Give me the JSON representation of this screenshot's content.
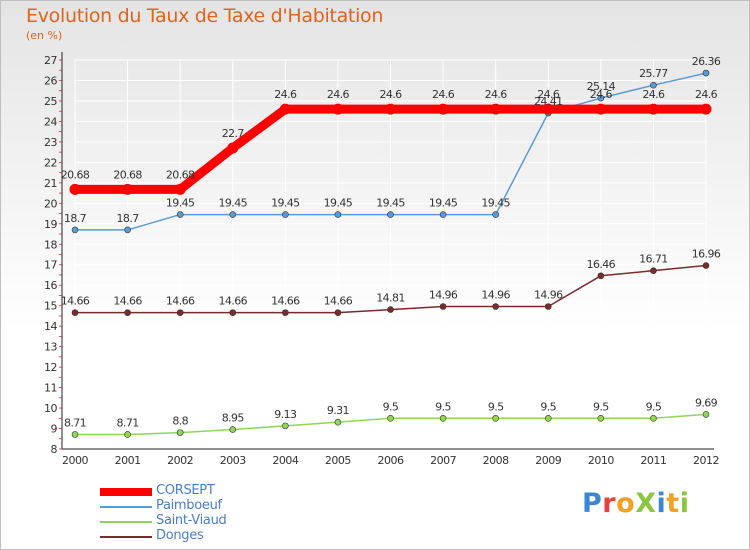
{
  "title": "Evolution du Taux de Taxe d'Habitation",
  "subtitle": "(en %)",
  "logo": {
    "text": "ProXiti",
    "colors": [
      "#3a87d6",
      "#e8413c",
      "#f2a21f",
      "#8cc63f",
      "#3a87d6",
      "#f2a21f",
      "#8cc63f"
    ]
  },
  "chart_data": {
    "type": "line",
    "x": [
      "2000",
      "2001",
      "2002",
      "2003",
      "2004",
      "2005",
      "2006",
      "2007",
      "2008",
      "2009",
      "2010",
      "2011",
      "2012"
    ],
    "ylim": [
      8,
      27
    ],
    "yticks": [
      8,
      9,
      10,
      11,
      12,
      13,
      14,
      15,
      16,
      17,
      18,
      19,
      20,
      21,
      22,
      23,
      24,
      25,
      26,
      27
    ],
    "grid": true,
    "legend_position": "bottom-left",
    "series": [
      {
        "name": "CORSEPT",
        "color": "#ff0000",
        "values": [
          20.68,
          20.68,
          20.68,
          22.7,
          24.6,
          24.6,
          24.6,
          24.6,
          24.6,
          24.6,
          24.6,
          24.6,
          24.6
        ],
        "labels": [
          "20.68",
          "20.68",
          "20.68",
          "22.7",
          "24.6",
          "24.6",
          "24.6",
          "24.6",
          "24.6",
          "24.6",
          "24.6",
          "24.6",
          "24.6"
        ]
      },
      {
        "name": "Paimboeuf",
        "color": "#5b9bd5",
        "values": [
          18.7,
          18.7,
          19.45,
          19.45,
          19.45,
          19.45,
          19.45,
          19.45,
          19.45,
          24.41,
          25.14,
          25.77,
          26.36
        ],
        "labels": [
          "18.7",
          "18.7",
          "19.45",
          "19.45",
          "19.45",
          "19.45",
          "19.45",
          "19.45",
          "19.45",
          "24.41",
          "25.14",
          "25.77",
          "26.36"
        ]
      },
      {
        "name": "Saint-Viaud",
        "color": "#8ed65a",
        "values": [
          8.71,
          8.71,
          8.8,
          8.95,
          9.13,
          9.31,
          9.5,
          9.5,
          9.5,
          9.5,
          9.5,
          9.5,
          9.69
        ],
        "labels": [
          "8.71",
          "8.71",
          "8.8",
          "8.95",
          "9.13",
          "9.31",
          "9.5",
          "9.5",
          "9.5",
          "9.5",
          "9.5",
          "9.5",
          "9.69"
        ]
      },
      {
        "name": "Donges",
        "color": "#7a2b2b",
        "values": [
          14.66,
          14.66,
          14.66,
          14.66,
          14.66,
          14.66,
          14.81,
          14.96,
          14.96,
          14.96,
          16.46,
          16.71,
          16.96
        ],
        "labels": [
          "14.66",
          "14.66",
          "14.66",
          "14.66",
          "14.66",
          "14.66",
          "14.81",
          "14.96",
          "14.96",
          "14.96",
          "16.46",
          "16.71",
          "16.96"
        ]
      }
    ]
  }
}
